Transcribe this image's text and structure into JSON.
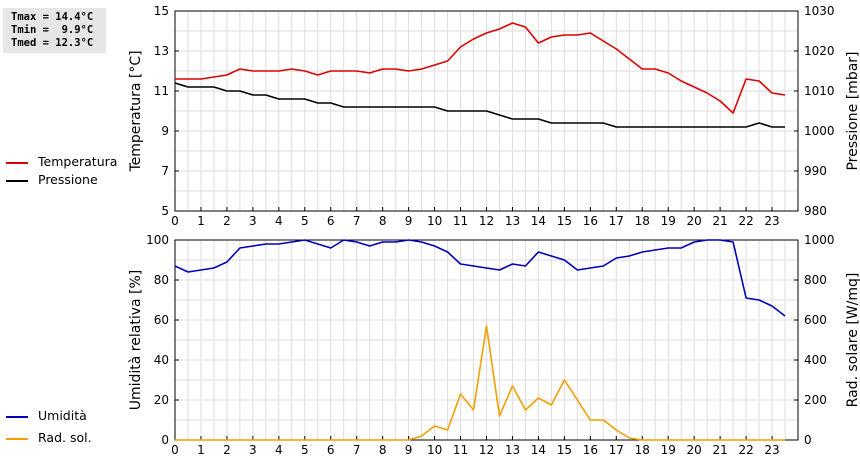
{
  "stats": {
    "tmax": "Tmax = 14.4°C",
    "tmin": "Tmin =  9.9°C",
    "tmed": "Tmed = 12.3°C"
  },
  "legend_top": [
    {
      "label": "Temperatura",
      "color": "#dd0000"
    },
    {
      "label": "Pressione",
      "color": "#000000"
    }
  ],
  "legend_bottom": [
    {
      "label": "Umidità",
      "color": "#0000bb"
    },
    {
      "label": "Rad. sol.",
      "color": "#f0a000"
    }
  ],
  "chart_data": [
    {
      "type": "line",
      "xlabel": "",
      "xlim": [
        0,
        24
      ],
      "xticks": [
        "0",
        "1",
        "2",
        "3",
        "4",
        "5",
        "6",
        "7",
        "8",
        "9",
        "10",
        "11",
        "12",
        "13",
        "14",
        "15",
        "16",
        "17",
        "18",
        "19",
        "20",
        "21",
        "22",
        "23"
      ],
      "ylabel": "Temperatura [°C]",
      "ylim": [
        5,
        15
      ],
      "yticks": [
        "5",
        "7",
        "9",
        "11",
        "13",
        "15"
      ],
      "y2label": "Pressione [mbar]",
      "y2lim": [
        980,
        1030
      ],
      "y2ticks": [
        "980",
        "990",
        "1000",
        "1010",
        "1020",
        "1030"
      ],
      "grid": true,
      "series": [
        {
          "name": "Temperatura",
          "axis": "left",
          "color": "#dd0000",
          "x": [
            0,
            0.5,
            1,
            1.5,
            2,
            2.5,
            3,
            3.5,
            4,
            4.5,
            5,
            5.5,
            6,
            6.5,
            7,
            7.5,
            8,
            8.5,
            9,
            9.5,
            10,
            10.5,
            11,
            11.5,
            12,
            12.5,
            13,
            13.25,
            13.5,
            14,
            14.5,
            15,
            15.5,
            16,
            16.5,
            17,
            17.5,
            18,
            18.5,
            19,
            19.5,
            20,
            20.5,
            21,
            21.5,
            22,
            22.5,
            23,
            23.5
          ],
          "y": [
            11.6,
            11.6,
            11.6,
            11.7,
            11.8,
            12.1,
            12.0,
            12.0,
            12.0,
            12.1,
            12.0,
            11.8,
            12.0,
            12.0,
            12.0,
            11.9,
            12.1,
            12.1,
            12.0,
            12.1,
            12.3,
            12.5,
            13.2,
            13.6,
            13.9,
            14.1,
            14.4,
            14.3,
            14.2,
            13.4,
            13.7,
            13.8,
            13.8,
            13.9,
            13.5,
            13.1,
            12.6,
            12.1,
            12.1,
            11.9,
            11.5,
            11.2,
            10.9,
            10.5,
            9.9,
            11.6,
            11.5,
            10.9,
            10.8
          ]
        },
        {
          "name": "Pressione",
          "axis": "right",
          "color": "#000000",
          "x": [
            0,
            0.5,
            1,
            1.5,
            2,
            2.5,
            3,
            3.5,
            4,
            4.5,
            5,
            5.5,
            6,
            6.5,
            7,
            7.5,
            8,
            8.5,
            9,
            9.5,
            10,
            10.5,
            11,
            11.5,
            12,
            12.5,
            13,
            13.5,
            14,
            14.5,
            15,
            15.5,
            16,
            16.5,
            17,
            17.5,
            18,
            18.5,
            19,
            19.5,
            20,
            20.5,
            21,
            21.5,
            22,
            22.5,
            23,
            23.5
          ],
          "y": [
            1012,
            1011,
            1011,
            1011,
            1010,
            1010,
            1009,
            1009,
            1008,
            1008,
            1008,
            1007,
            1007,
            1006,
            1006,
            1006,
            1006,
            1006,
            1006,
            1006,
            1006,
            1005,
            1005,
            1005,
            1005,
            1004,
            1003,
            1003,
            1003,
            1002,
            1002,
            1002,
            1002,
            1002,
            1001,
            1001,
            1001,
            1001,
            1001,
            1001,
            1001,
            1001,
            1001,
            1001,
            1001,
            1002,
            1001,
            1001
          ]
        }
      ]
    },
    {
      "type": "line",
      "xlabel": "",
      "xlim": [
        0,
        24
      ],
      "xticks": [
        "0",
        "1",
        "2",
        "3",
        "4",
        "5",
        "6",
        "7",
        "8",
        "9",
        "10",
        "11",
        "12",
        "13",
        "14",
        "15",
        "16",
        "17",
        "18",
        "19",
        "20",
        "21",
        "22",
        "23"
      ],
      "ylabel": "Umidità relativa [%]",
      "ylim": [
        0,
        100
      ],
      "yticks": [
        "0",
        "20",
        "40",
        "60",
        "80",
        "100"
      ],
      "y2label": "Rad. solare [W/mq]",
      "y2lim": [
        0,
        1000
      ],
      "y2ticks": [
        "0",
        "200",
        "400",
        "600",
        "800",
        "1000"
      ],
      "grid": true,
      "series": [
        {
          "name": "Umidità",
          "axis": "left",
          "color": "#0000bb",
          "x": [
            0,
            0.5,
            1,
            1.5,
            2,
            2.5,
            3,
            3.5,
            4,
            4.5,
            5,
            5.5,
            6,
            6.5,
            7,
            7.5,
            8,
            8.5,
            9,
            9.5,
            10,
            10.5,
            11,
            11.5,
            12,
            12.5,
            13,
            13.5,
            14,
            14.5,
            15,
            15.5,
            16,
            16.5,
            17,
            17.5,
            18,
            18.5,
            19,
            19.5,
            20,
            20.5,
            21,
            21.5,
            22,
            22.5,
            23,
            23.5
          ],
          "y": [
            87,
            84,
            85,
            86,
            89,
            96,
            97,
            98,
            98,
            99,
            100,
            98,
            96,
            100,
            99,
            97,
            99,
            99,
            100,
            99,
            97,
            94,
            88,
            87,
            86,
            85,
            88,
            87,
            94,
            92,
            90,
            85,
            86,
            87,
            91,
            92,
            94,
            95,
            96,
            96,
            99,
            100,
            100,
            99,
            71,
            70,
            67,
            62
          ]
        },
        {
          "name": "Rad. sol.",
          "axis": "right",
          "color": "#f0a000",
          "x": [
            0,
            1,
            2,
            3,
            4,
            5,
            6,
            7,
            8,
            9,
            9.5,
            10,
            10.5,
            11,
            11.5,
            12,
            12.5,
            13,
            13.5,
            14,
            14.5,
            15,
            15.5,
            16,
            16.5,
            17,
            17.5,
            18,
            19,
            20,
            21,
            22,
            23,
            23.5
          ],
          "y": [
            0,
            0,
            0,
            0,
            0,
            0,
            0,
            0,
            0,
            0,
            20,
            70,
            50,
            230,
            150,
            570,
            120,
            270,
            150,
            210,
            175,
            300,
            200,
            100,
            100,
            50,
            10,
            0,
            0,
            0,
            0,
            0,
            0,
            0
          ]
        }
      ]
    }
  ]
}
